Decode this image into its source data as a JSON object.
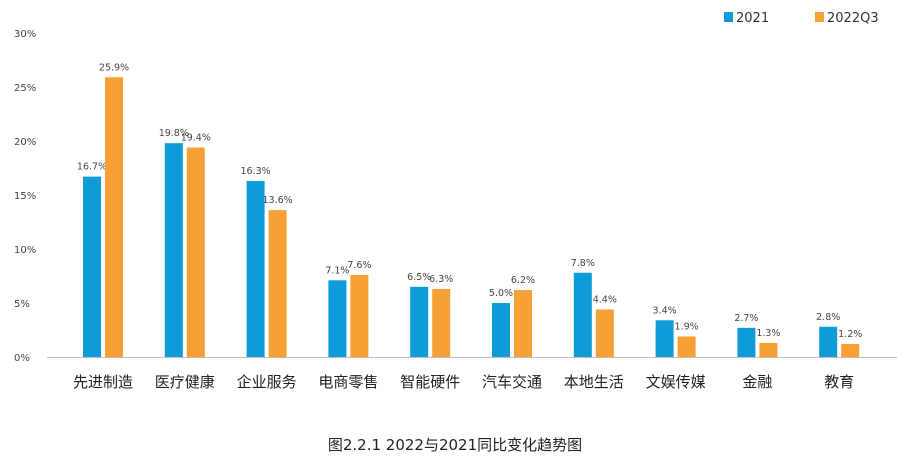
{
  "chart_data": {
    "type": "bar",
    "title": "",
    "caption": "图2.2.1    2022与2021同比变化趋势图",
    "xlabel": "",
    "ylabel": "",
    "ylim": [
      0,
      30
    ],
    "yticks": [
      "0%",
      "5%",
      "10%",
      "15%",
      "20%",
      "25%",
      "30%"
    ],
    "ytick_values": [
      0,
      5,
      10,
      15,
      20,
      25,
      30
    ],
    "grid": false,
    "legend": "top-right",
    "categories": [
      "先进制造",
      "医疗健康",
      "企业服务",
      "电商零售",
      "智能硬件",
      "汽车交通",
      "本地生活",
      "文娱传媒",
      "金融",
      "教育"
    ],
    "series": [
      {
        "name": "2021",
        "color": "#0f9bd7",
        "values": [
          16.7,
          19.8,
          16.3,
          7.1,
          6.5,
          5.0,
          7.8,
          3.4,
          2.7,
          2.8
        ],
        "labels": [
          "16.7%",
          "19.8%",
          "16.3%",
          "7.1%",
          "6.5%",
          "5.0%",
          "7.8%",
          "3.4%",
          "2.7%",
          "2.8%"
        ]
      },
      {
        "name": "2022Q3",
        "color": "#f6a035",
        "values": [
          25.9,
          19.4,
          13.6,
          7.6,
          6.3,
          6.2,
          4.4,
          1.9,
          1.3,
          1.2
        ],
        "labels": [
          "25.9%",
          "19.4%",
          "13.6%",
          "7.6%",
          "6.3%",
          "6.2%",
          "4.4%",
          "1.9%",
          "1.3%",
          "1.2%"
        ]
      }
    ]
  }
}
